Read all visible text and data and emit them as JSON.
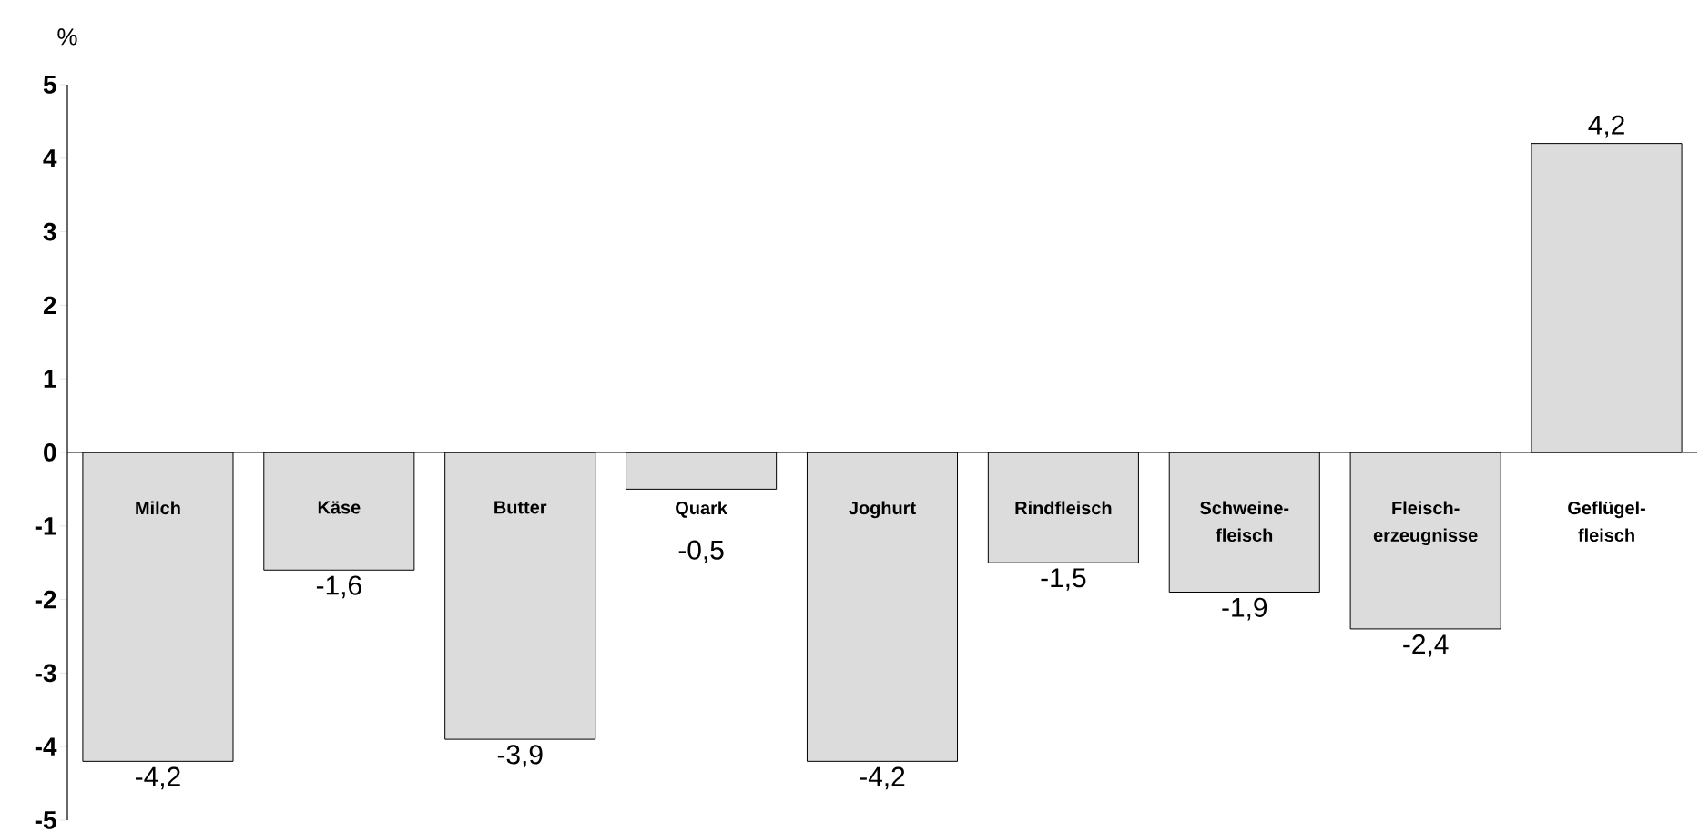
{
  "chart_data": {
    "type": "bar",
    "ylabel": "%",
    "categories": [
      "Milch",
      "Käse",
      "Butter",
      "Quark",
      "Joghurt",
      "Rindfleisch",
      "Schweine- fleisch",
      "Fleisch- erzeugnisse",
      "Geflügel- fleisch"
    ],
    "values": [
      -4.2,
      -1.6,
      -3.9,
      -0.5,
      -4.2,
      -1.5,
      -1.9,
      -2.4,
      4.2
    ],
    "value_labels": [
      "-4,2",
      "-1,6",
      "-3,9",
      "-0,5",
      "-4,2",
      "-1,5",
      "-1,9",
      "-2,4",
      "4,2"
    ],
    "color": "#dcdcdc",
    "ylim": [
      -5,
      5
    ],
    "yticks": [
      -5,
      -4,
      -3,
      -2,
      -1,
      0,
      1,
      2,
      3,
      4,
      5
    ]
  }
}
